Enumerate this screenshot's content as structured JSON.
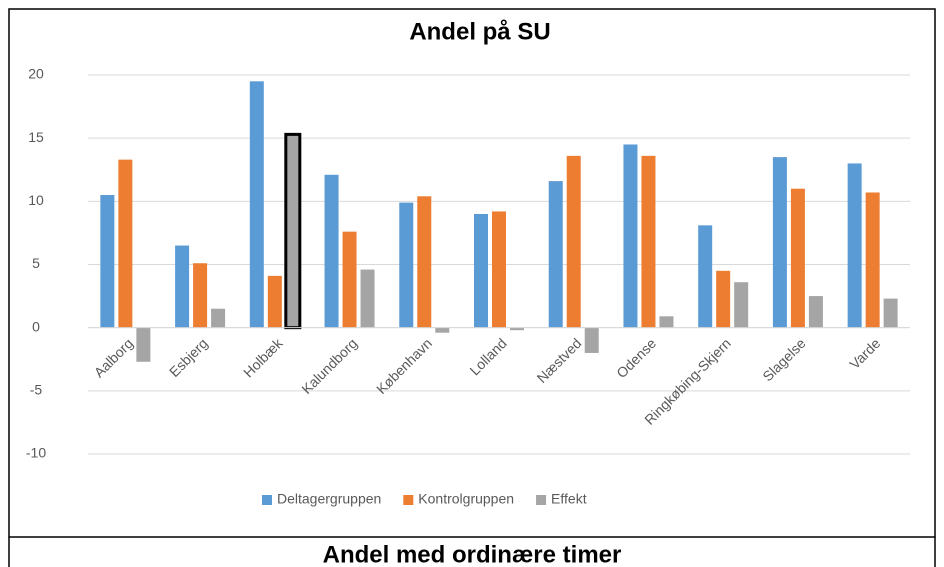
{
  "chart_data": [
    {
      "type": "bar",
      "title": "Andel på SU",
      "categories": [
        "Aalborg",
        "Esbjerg",
        "Holbæk",
        "Kalundborg",
        "København",
        "Lolland",
        "Næstved",
        "Odense",
        "Ringkøbing-Skjern",
        "Slagelse",
        "Varde"
      ],
      "series": [
        {
          "name": "Deltagergruppen",
          "color": "#5b9bd5",
          "values": [
            10.5,
            6.5,
            19.5,
            12.1,
            9.9,
            9.0,
            11.6,
            14.5,
            8.1,
            13.5,
            13.0
          ]
        },
        {
          "name": "Kontrolgruppen",
          "color": "#ed7d31",
          "values": [
            13.3,
            5.1,
            4.1,
            7.6,
            10.4,
            9.2,
            13.6,
            13.6,
            4.5,
            11.0,
            10.7
          ]
        },
        {
          "name": "Effekt",
          "color": "#a5a5a5",
          "values": [
            -2.7,
            1.5,
            15.3,
            4.6,
            -0.4,
            -0.2,
            -2.0,
            0.9,
            3.6,
            2.5,
            2.3
          ]
        }
      ],
      "ylim": [
        -10,
        20
      ],
      "yticks": [
        -10,
        -5,
        0,
        5,
        10,
        15,
        20
      ],
      "grid": true,
      "legend": "bottom",
      "selected": {
        "series": 2,
        "index": 2
      }
    },
    {
      "type": "bar",
      "title": "Andel med ordinære timer"
    }
  ]
}
